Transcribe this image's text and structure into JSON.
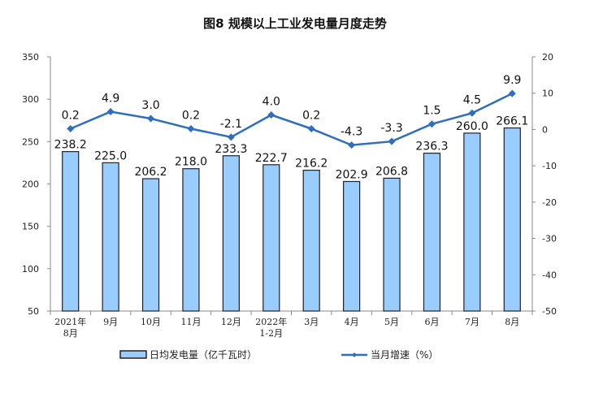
{
  "chart_data": {
    "type": "bar+line",
    "title": "图8  规模以上工业发电量月度走势",
    "categories": [
      [
        "2021年",
        "8月"
      ],
      [
        "9月"
      ],
      [
        "10月"
      ],
      [
        "11月"
      ],
      [
        "12月"
      ],
      [
        "2022年",
        "1-2月"
      ],
      [
        "3月"
      ],
      [
        "4月"
      ],
      [
        "5月"
      ],
      [
        "6月"
      ],
      [
        "7月"
      ],
      [
        "8月"
      ]
    ],
    "series": [
      {
        "name": "日均发电量（亿千瓦时）",
        "type": "bar",
        "axis": "left",
        "color": "#99CCFF",
        "values": [
          238.2,
          225.0,
          206.2,
          218.0,
          233.3,
          222.7,
          216.2,
          202.9,
          206.8,
          236.3,
          260.0,
          266.1
        ]
      },
      {
        "name": "当月增速（%）",
        "type": "line",
        "axis": "right",
        "color": "#2F6EBA",
        "values": [
          0.2,
          4.9,
          3.0,
          0.2,
          -2.1,
          4.0,
          0.2,
          -4.3,
          -3.3,
          1.5,
          4.5,
          9.9
        ]
      }
    ],
    "left_axis": {
      "ylim": [
        50,
        350
      ],
      "ticks": [
        50,
        100,
        150,
        200,
        250,
        300,
        350
      ]
    },
    "right_axis": {
      "ylim": [
        -50,
        20
      ],
      "ticks": [
        -50,
        -40,
        -30,
        -20,
        -10,
        0,
        10,
        20
      ]
    },
    "grid": false,
    "legend": "bottom"
  }
}
